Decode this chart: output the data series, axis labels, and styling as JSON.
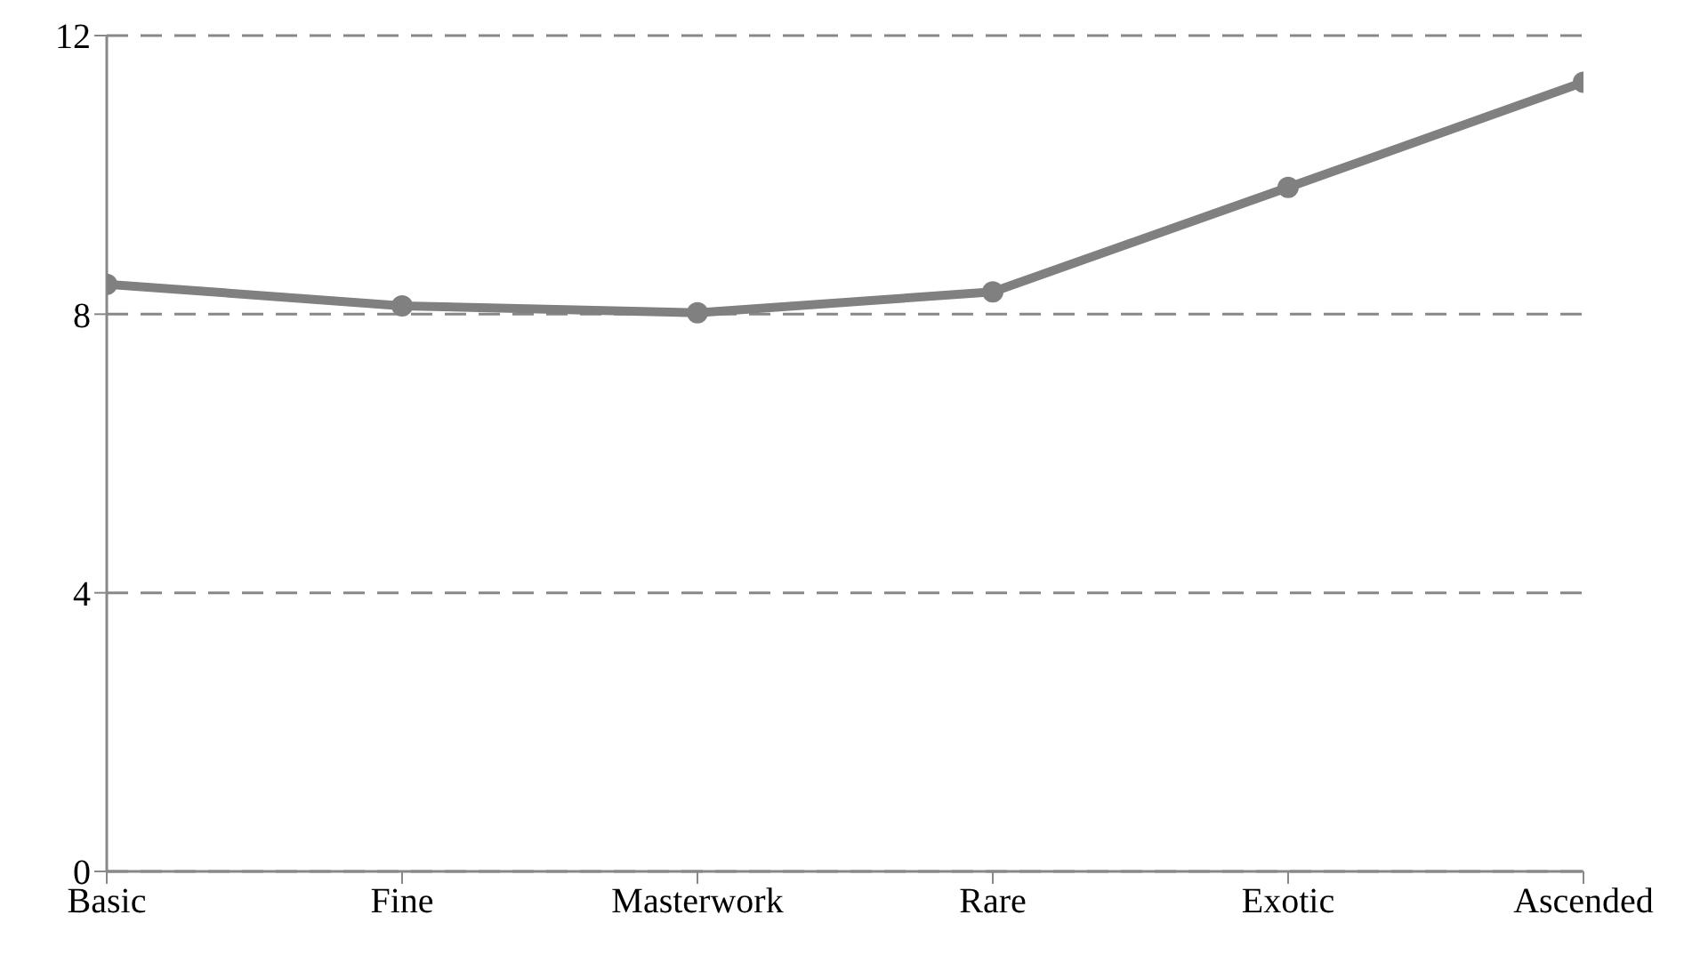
{
  "chart_data": {
    "type": "line",
    "categories": [
      "Basic",
      "Fine",
      "Masterwork",
      "Rare",
      "Exotic",
      "Ascended"
    ],
    "series": [
      {
        "color": "#808080",
        "values": [
          8.43,
          8.12,
          8.02,
          8.32,
          9.82,
          11.33
        ]
      }
    ],
    "ylim": [
      0,
      12
    ],
    "yticks": [
      0,
      4,
      8,
      12
    ],
    "grid": "y",
    "marker": "circle"
  }
}
